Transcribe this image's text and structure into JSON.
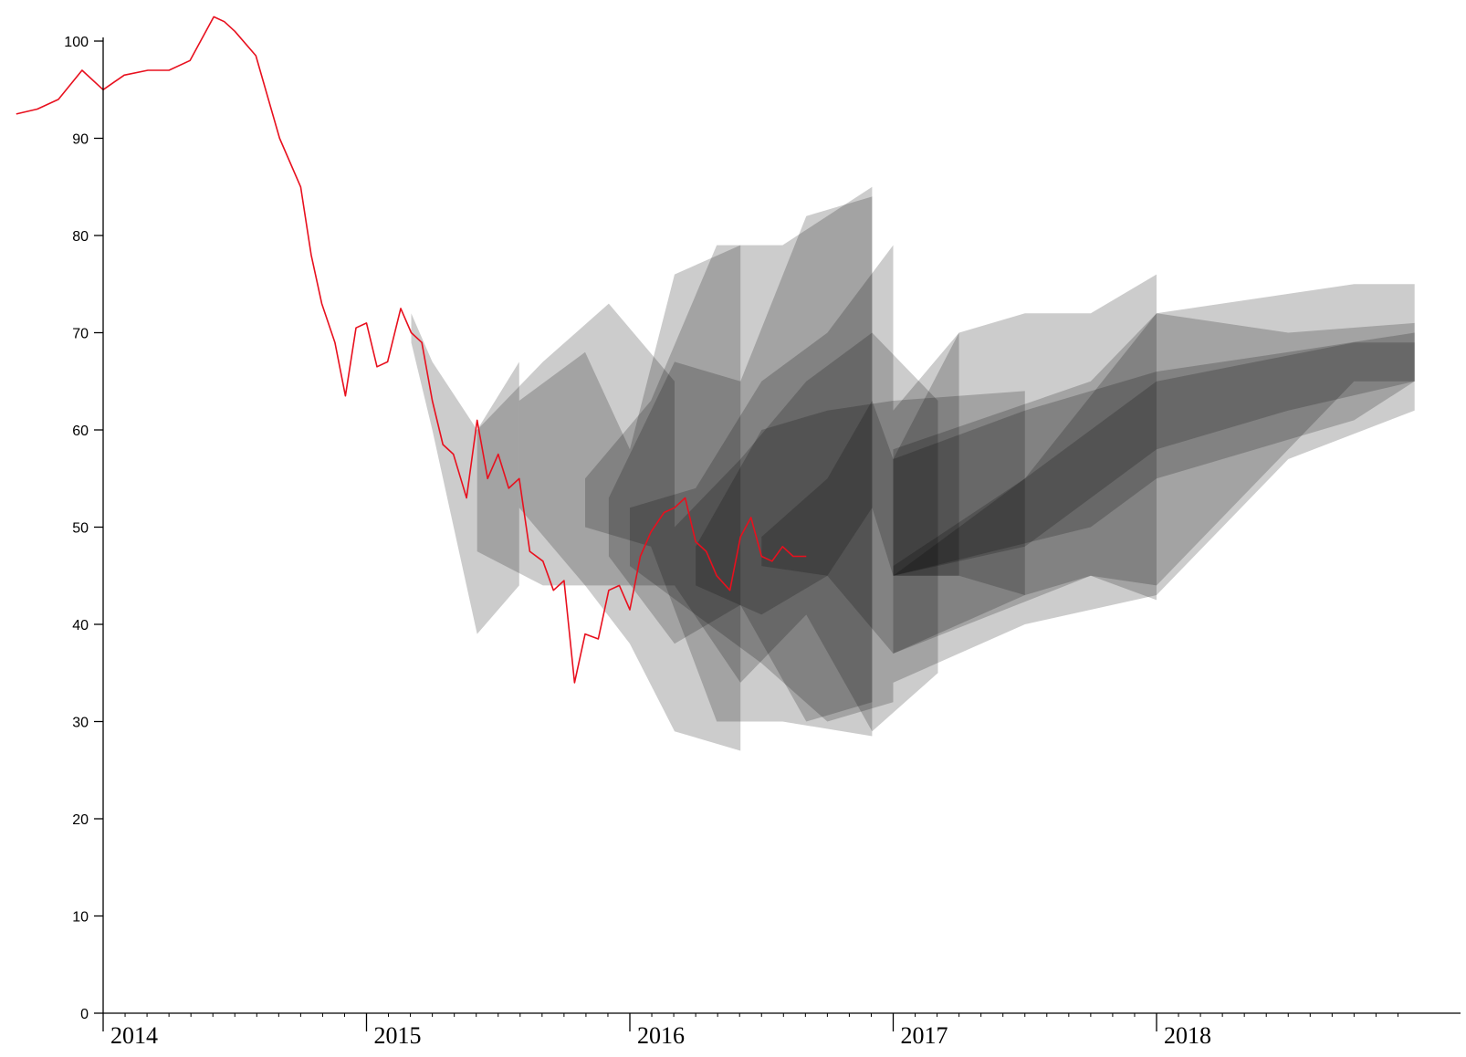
{
  "chart_data": {
    "type": "area",
    "title": "",
    "xlabel": "",
    "ylabel": "",
    "xlim": [
      2013.67,
      2018.98
    ],
    "ylim": [
      0,
      100
    ],
    "y_ticks": [
      "0",
      "10",
      "20",
      "30",
      "40",
      "50",
      "60",
      "70",
      "80",
      "90",
      "100"
    ],
    "x_ticks": [
      "2014",
      "2015",
      "2016",
      "2017",
      "2018"
    ],
    "grid": false,
    "legend": "none",
    "colors": {
      "price_line": "#e8101e",
      "bands": "#000000"
    },
    "series": [
      {
        "type": "line",
        "x": [
          2013.67,
          2013.75,
          2013.83,
          2013.92,
          2014.0,
          2014.08,
          2014.17,
          2014.25,
          2014.33,
          2014.42,
          2014.46,
          2014.5,
          2014.58,
          2014.67,
          2014.75,
          2014.79,
          2014.83,
          2014.88,
          2014.92,
          2014.96,
          2015.0,
          2015.04,
          2015.08,
          2015.13,
          2015.17,
          2015.21,
          2015.25,
          2015.29,
          2015.33,
          2015.38,
          2015.42,
          2015.46,
          2015.5,
          2015.54,
          2015.58,
          2015.62,
          2015.67,
          2015.71,
          2015.75,
          2015.79,
          2015.83,
          2015.88,
          2015.92,
          2015.96,
          2016.0,
          2016.04,
          2016.08,
          2016.13,
          2016.17,
          2016.21,
          2016.25,
          2016.29,
          2016.33,
          2016.38,
          2016.42,
          2016.46,
          2016.5,
          2016.54,
          2016.58,
          2016.62,
          2016.67
        ],
        "y": [
          92.5,
          93.0,
          94.0,
          97.0,
          95.0,
          96.5,
          97.0,
          97.0,
          98.0,
          102.5,
          102.0,
          101.0,
          98.5,
          90.0,
          85.0,
          78.0,
          73.0,
          69.0,
          63.5,
          70.5,
          71.0,
          66.5,
          67.0,
          72.5,
          70.0,
          69.0,
          63.0,
          58.5,
          57.5,
          53.0,
          61.0,
          55.0,
          57.5,
          54.0,
          55.0,
          47.5,
          46.5,
          43.5,
          44.5,
          34.0,
          39.0,
          38.5,
          43.5,
          44.0,
          41.5,
          47.0,
          49.5,
          51.5,
          52.0,
          53.0,
          48.5,
          47.5,
          45.0,
          43.5,
          49.0,
          51.0,
          47.0,
          46.5,
          48.0,
          47.0,
          47.0
        ]
      },
      {
        "type": "band",
        "x": [
          2015.17,
          2015.25,
          2015.42,
          2015.58
        ],
        "lower": [
          69.0,
          60.0,
          39.0,
          44.0
        ],
        "upper": [
          72.0,
          67.0,
          60.0,
          67.0
        ]
      },
      {
        "type": "band",
        "x": [
          2015.42,
          2015.67,
          2015.92,
          2016.17
        ],
        "lower": [
          47.5,
          44.0,
          44.0,
          44.0
        ],
        "upper": [
          60.0,
          67.0,
          73.0,
          65.0
        ]
      },
      {
        "type": "band",
        "x": [
          2015.58,
          2015.83,
          2016.0,
          2016.17,
          2016.42
        ],
        "lower": [
          52.0,
          44.0,
          38.0,
          29.0,
          27.0
        ],
        "upper": [
          63.0,
          68.0,
          58.0,
          76.0,
          79.0
        ]
      },
      {
        "type": "band",
        "x": [
          2015.83,
          2016.08,
          2016.33,
          2016.58,
          2016.92
        ],
        "lower": [
          50.0,
          48.0,
          30.0,
          30.0,
          28.5
        ],
        "upper": [
          55.0,
          63.0,
          79.0,
          79.0,
          85.0
        ]
      },
      {
        "type": "band",
        "x": [
          2015.92,
          2016.17,
          2016.42,
          2016.67,
          2016.92
        ],
        "lower": [
          47.0,
          38.0,
          42.0,
          30.0,
          32.0
        ],
        "upper": [
          53.0,
          67.0,
          65.0,
          82.0,
          84.0
        ]
      },
      {
        "type": "band",
        "x": [
          2016.0,
          2016.25,
          2016.5,
          2016.75,
          2017.0
        ],
        "lower": [
          46.0,
          41.0,
          36.0,
          30.0,
          32.0
        ],
        "upper": [
          52.0,
          54.0,
          65.0,
          70.0,
          79.0
        ]
      },
      {
        "type": "band",
        "x": [
          2016.17,
          2016.42,
          2016.67,
          2016.92,
          2017.17
        ],
        "lower": [
          44.0,
          34.0,
          41.0,
          29.0,
          35.0
        ],
        "upper": [
          50.0,
          57.0,
          65.0,
          70.0,
          63.0
        ]
      },
      {
        "type": "band",
        "x": [
          2016.25,
          2016.5,
          2016.75,
          2017.0,
          2017.5
        ],
        "lower": [
          44.0,
          41.0,
          45.0,
          37.0,
          43.0
        ],
        "upper": [
          48.0,
          60.0,
          62.0,
          63.0,
          64.0
        ]
      },
      {
        "type": "band",
        "x": [
          2016.5,
          2016.75,
          2016.92,
          2017.0,
          2017.25
        ],
        "lower": [
          46.0,
          45.0,
          52.0,
          45.0,
          45.0
        ],
        "upper": [
          49.0,
          55.0,
          63.0,
          57.0,
          70.0
        ]
      },
      {
        "type": "band",
        "x": [
          2017.0,
          2017.25,
          2017.5,
          2017.75,
          2018.0
        ],
        "lower": [
          45.0,
          45.0,
          43.0,
          45.0,
          42.5
        ],
        "upper": [
          62.0,
          70.0,
          72.0,
          72.0,
          76.0
        ]
      },
      {
        "type": "band",
        "x": [
          2017.0,
          2017.5,
          2018.0,
          2018.5,
          2018.98
        ],
        "lower": [
          45.0,
          48.0,
          58.0,
          62.0,
          65.0
        ],
        "upper": [
          46.0,
          55.0,
          72.0,
          70.0,
          71.0
        ]
      },
      {
        "type": "band",
        "x": [
          2017.0,
          2017.5,
          2018.0,
          2018.5,
          2018.98
        ],
        "lower": [
          34.0,
          40.0,
          43.0,
          57.0,
          62.0
        ],
        "upper": [
          57.0,
          62.0,
          66.0,
          68.0,
          70.0
        ]
      },
      {
        "type": "band",
        "x": [
          2017.0,
          2017.75,
          2018.0,
          2018.75,
          2018.98
        ],
        "lower": [
          45.0,
          50.0,
          55.0,
          61.0,
          65.0
        ],
        "upper": [
          58.0,
          65.0,
          72.0,
          75.0,
          75.0
        ]
      },
      {
        "type": "band",
        "x": [
          2017.0,
          2017.75,
          2018.0,
          2018.75,
          2018.98
        ],
        "lower": [
          37.0,
          45.0,
          44.0,
          65.0,
          65.0
        ],
        "upper": [
          45.0,
          60.0,
          65.0,
          69.0,
          69.0
        ]
      }
    ]
  }
}
